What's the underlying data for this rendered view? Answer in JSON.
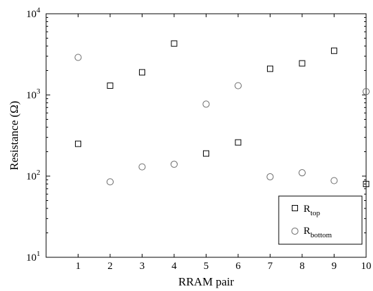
{
  "chart_data": {
    "type": "scatter",
    "xlabel": "RRAM  pair",
    "ylabel": "Resistance (Ω)",
    "xlim": [
      0,
      10
    ],
    "ylim": [
      10,
      10000
    ],
    "yscale": "log",
    "x_ticks": [
      1,
      2,
      3,
      4,
      5,
      6,
      7,
      8,
      9,
      10
    ],
    "y_tick_labels": [
      {
        "base": "10",
        "exp": "1",
        "value": 10
      },
      {
        "base": "10",
        "exp": "2",
        "value": 100
      },
      {
        "base": "10",
        "exp": "3",
        "value": 1000
      },
      {
        "base": "10",
        "exp": "4",
        "value": 10000
      }
    ],
    "legend_position": "bottom-right",
    "grid": false,
    "series": [
      {
        "name_main": "R",
        "name_sub": "top",
        "marker": "square",
        "color": "#000000",
        "points": [
          [
            1,
            250
          ],
          [
            2,
            1300
          ],
          [
            3,
            1900
          ],
          [
            4,
            4300
          ],
          [
            5,
            190
          ],
          [
            6,
            260
          ],
          [
            7,
            2100
          ],
          [
            8,
            2450
          ],
          [
            9,
            3500
          ],
          [
            10,
            80
          ]
        ]
      },
      {
        "name_main": "R",
        "name_sub": "bottom",
        "marker": "circle",
        "color": "#6b6b6b",
        "points": [
          [
            1,
            2900
          ],
          [
            2,
            85
          ],
          [
            3,
            130
          ],
          [
            4,
            140
          ],
          [
            5,
            770
          ],
          [
            6,
            1300
          ],
          [
            7,
            98
          ],
          [
            8,
            110
          ],
          [
            9,
            88
          ],
          [
            10,
            1100
          ]
        ]
      }
    ]
  }
}
